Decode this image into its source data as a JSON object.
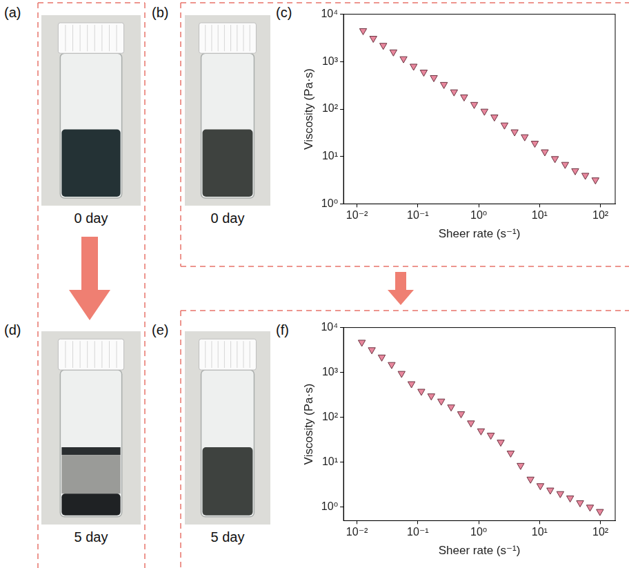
{
  "photos": [
    {
      "panel": "(a)",
      "caption": "0 day"
    },
    {
      "panel": "(b)",
      "caption": "0 day"
    },
    {
      "panel": "(d)",
      "caption": "5 day"
    },
    {
      "panel": "(e)",
      "caption": "5 day"
    }
  ],
  "chart_data": [
    {
      "panel": "(c)",
      "type": "scatter",
      "x_label": "Sheer rate (s⁻¹)",
      "y_label": "Viscosity (Pa·s)",
      "x": [
        0.0126,
        0.0185,
        0.027,
        0.0396,
        0.0581,
        0.0851,
        0.125,
        0.183,
        0.268,
        0.393,
        0.575,
        0.843,
        1.24,
        1.81,
        2.65,
        3.89,
        5.7,
        8.36,
        12.2,
        17.9,
        26.3,
        38.5,
        56.5,
        82.8
      ],
      "values": [
        4500,
        3100,
        2200,
        1600,
        1150,
        800,
        600,
        460,
        330,
        230,
        180,
        125,
        90,
        68,
        46,
        33,
        26,
        19,
        12.5,
        9,
        6.8,
        5,
        4,
        3.2
      ],
      "color": "#e8879d",
      "marker": "triangle-down",
      "log": true,
      "grid": false,
      "xlim": [
        0.006,
        175
      ],
      "ylim": [
        1,
        10000
      ],
      "xticks": [
        {
          "value": 0.01,
          "label": "10⁻²"
        },
        {
          "value": 0.1,
          "label": "10⁻¹"
        },
        {
          "value": 1,
          "label": "10⁰"
        },
        {
          "value": 10,
          "label": "10¹"
        },
        {
          "value": 100,
          "label": "10²"
        }
      ],
      "yticks": [
        {
          "value": 1,
          "label": "10⁰"
        },
        {
          "value": 10,
          "label": "10¹"
        },
        {
          "value": 100,
          "label": "10²"
        },
        {
          "value": 1000,
          "label": "10³"
        },
        {
          "value": 10000,
          "label": "10⁴"
        }
      ]
    },
    {
      "panel": "(f)",
      "type": "scatter",
      "x_label": "Sheer rate (s⁻¹)",
      "y_label": "Viscosity (Pa·s)",
      "x": [
        0.012,
        0.0175,
        0.0255,
        0.0371,
        0.054,
        0.0785,
        0.114,
        0.166,
        0.242,
        0.352,
        0.513,
        0.746,
        1.09,
        1.58,
        2.3,
        3.35,
        4.88,
        7.1,
        10.3,
        15,
        21.9,
        31.8,
        46.3,
        67.5,
        98.2
      ],
      "values": [
        4700,
        3200,
        2200,
        1500,
        950,
        560,
        380,
        300,
        230,
        170,
        120,
        75,
        50,
        40,
        28,
        16,
        8.5,
        4.2,
        3,
        2.4,
        2,
        1.6,
        1.25,
        1,
        0.8
      ],
      "color": "#e8879d",
      "marker": "triangle-down",
      "log": true,
      "grid": false,
      "xlim": [
        0.006,
        175
      ],
      "ylim": [
        0.5,
        10000
      ],
      "xticks": [
        {
          "value": 0.01,
          "label": "10⁻²"
        },
        {
          "value": 0.1,
          "label": "10⁻¹"
        },
        {
          "value": 1,
          "label": "10⁰"
        },
        {
          "value": 10,
          "label": "10¹"
        },
        {
          "value": 100,
          "label": "10²"
        }
      ],
      "yticks": [
        {
          "value": 1,
          "label": "10⁰"
        },
        {
          "value": 10,
          "label": "10¹"
        },
        {
          "value": 100,
          "label": "10²"
        },
        {
          "value": 1000,
          "label": "10³"
        },
        {
          "value": 10000,
          "label": "10⁴"
        }
      ]
    }
  ]
}
